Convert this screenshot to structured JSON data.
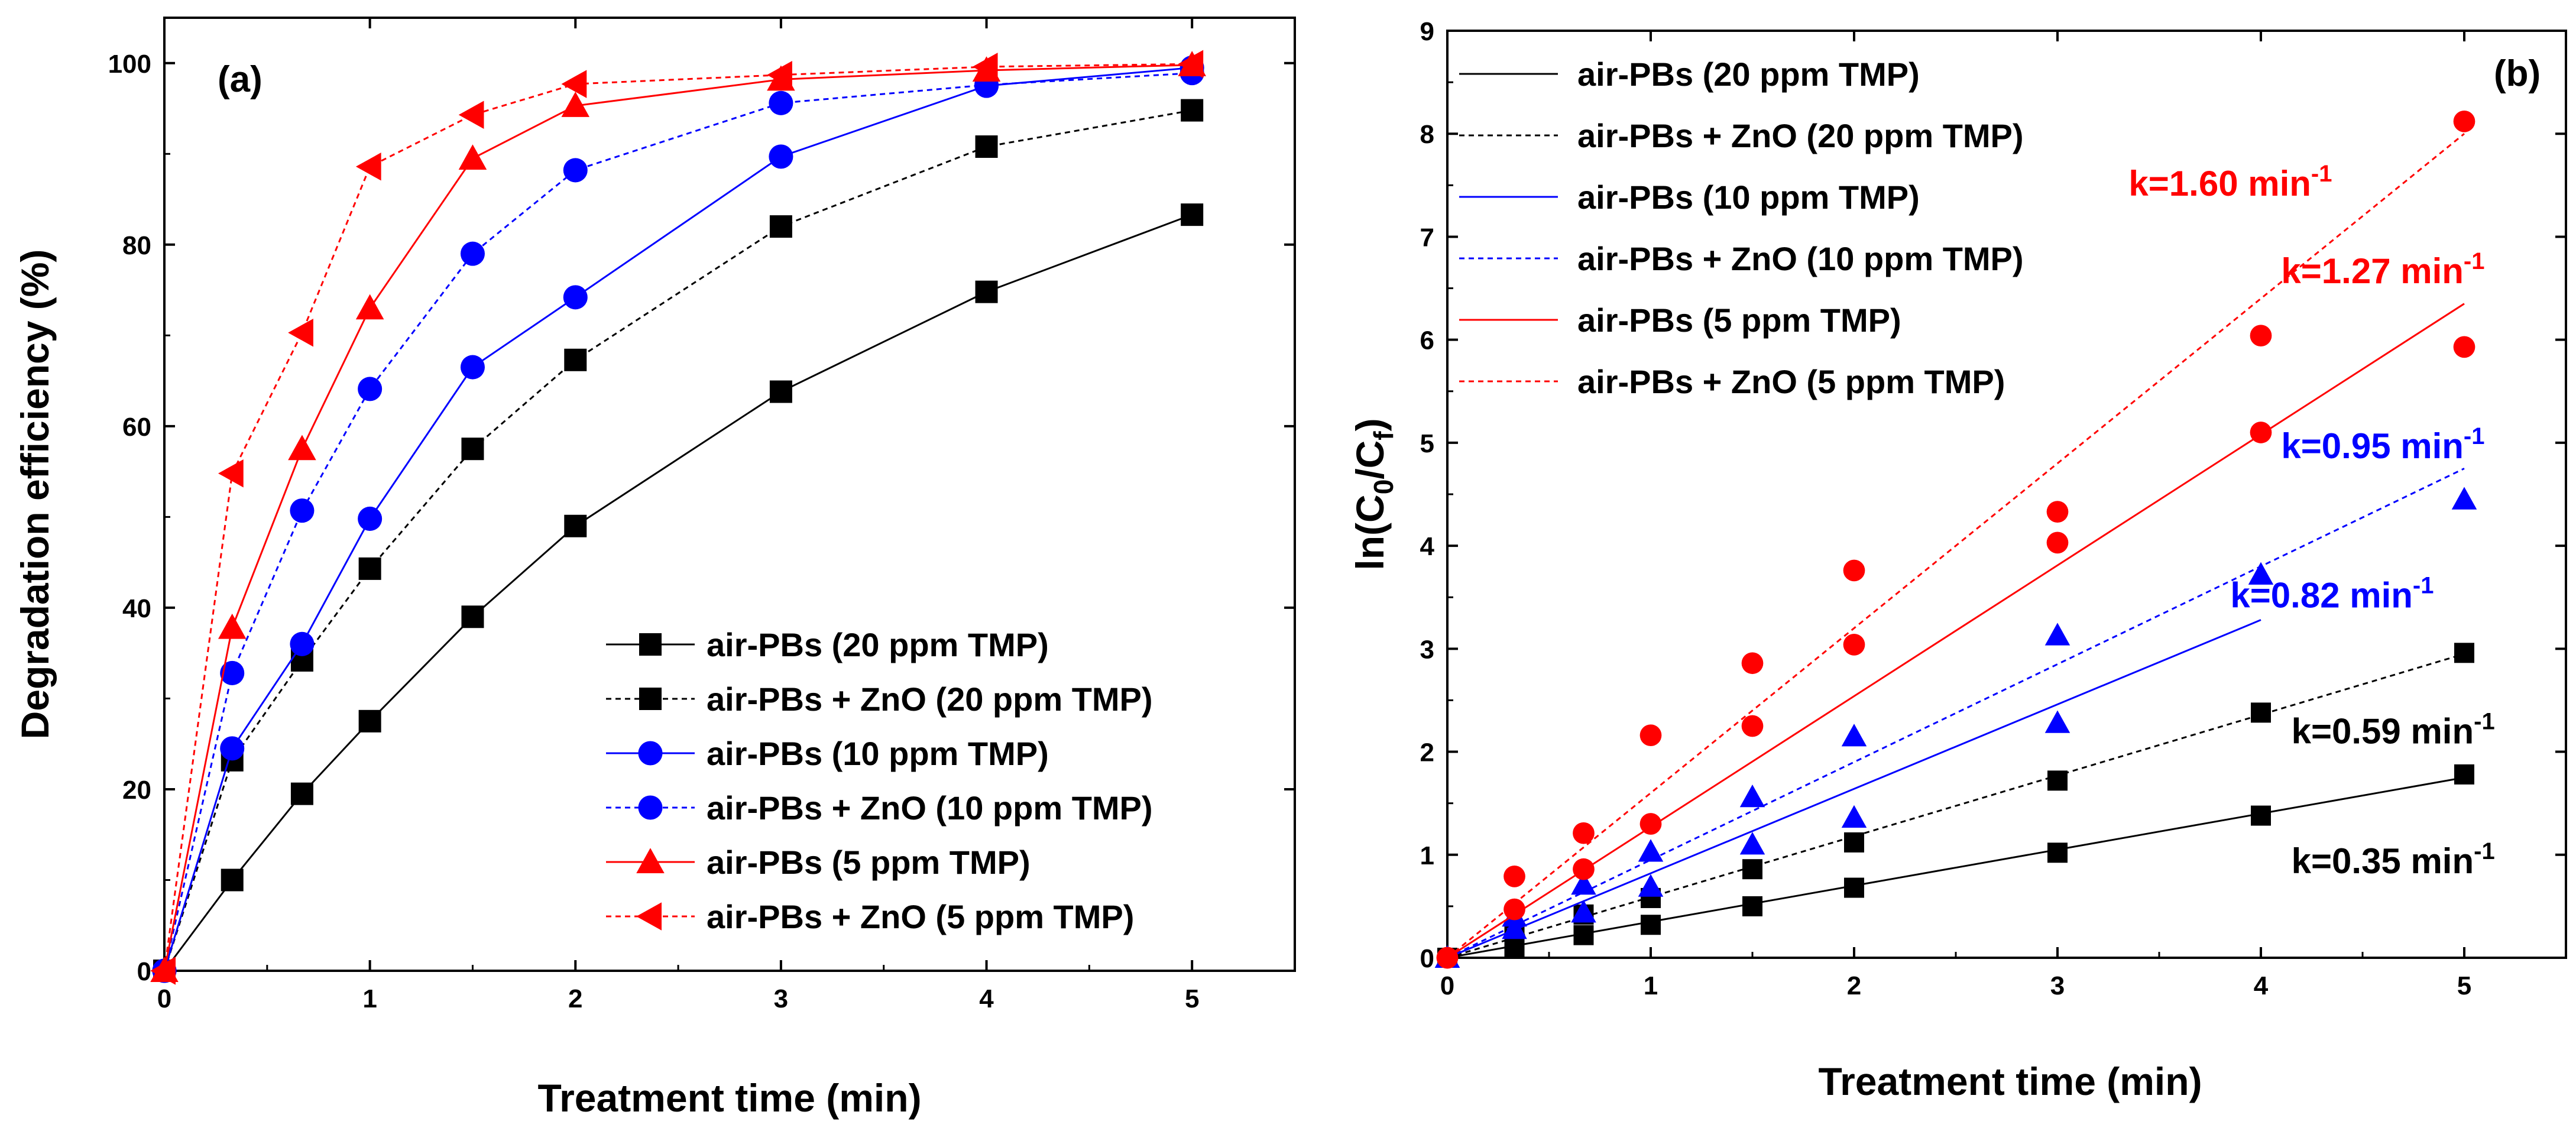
{
  "chart_data": [
    {
      "panel": "(a)",
      "type": "line",
      "xlabel": "Treatment time (min)",
      "ylabel": "Degradation efficiency (%)",
      "xlim": [
        0,
        5.5
      ],
      "ylim": [
        0,
        105
      ],
      "xticks": [
        "0",
        "1",
        "2",
        "3",
        "4",
        "5"
      ],
      "yticks": [
        "0",
        "20",
        "40",
        "60",
        "80",
        "100"
      ],
      "legend_position": "bottom-right",
      "series": [
        {
          "name": "air-PBs (20 ppm TMP)",
          "color": "#000000",
          "marker": "square",
          "dashed": false,
          "x": [
            0,
            0.33,
            0.67,
            1,
            1.5,
            2,
            3,
            4,
            5
          ],
          "y": [
            0,
            10,
            19.5,
            27.5,
            39,
            49,
            63.8,
            74.8,
            83.3
          ]
        },
        {
          "name": "air-PBs + ZnO (20 ppm TMP)",
          "color": "#000000",
          "marker": "square",
          "dashed": true,
          "x": [
            0,
            0.33,
            0.67,
            1,
            1.5,
            2,
            3,
            4,
            5
          ],
          "y": [
            0,
            23.2,
            34.2,
            44.3,
            57.5,
            67.3,
            82,
            90.8,
            94.8
          ]
        },
        {
          "name": "air-PBs (10 ppm TMP)",
          "color": "#0000ff",
          "marker": "circle",
          "dashed": false,
          "x": [
            0,
            0.33,
            0.67,
            1,
            1.5,
            2,
            3,
            4,
            5
          ],
          "y": [
            0,
            24.5,
            36,
            49.8,
            66.5,
            74.2,
            89.7,
            97.5,
            99.5
          ]
        },
        {
          "name": "air-PBs + ZnO (10 ppm TMP)",
          "color": "#0000ff",
          "marker": "circle",
          "dashed": true,
          "x": [
            0,
            0.33,
            0.67,
            1,
            1.5,
            2,
            3,
            4,
            5
          ],
          "y": [
            0,
            32.8,
            50.7,
            64.1,
            79,
            88.2,
            95.6,
            97.6,
            98.9
          ]
        },
        {
          "name": "air-PBs (5 ppm TMP)",
          "color": "#ff0000",
          "marker": "triangle",
          "dashed": false,
          "x": [
            0,
            0.33,
            0.67,
            1,
            1.5,
            2,
            3,
            4,
            5
          ],
          "y": [
            0,
            37.8,
            57.5,
            73,
            89.5,
            95.3,
            98.2,
            99.2,
            99.8
          ]
        },
        {
          "name": "air-PBs + ZnO (5 ppm TMP)",
          "color": "#ff0000",
          "marker": "triangle-left",
          "dashed": true,
          "x": [
            0,
            0.33,
            0.67,
            1,
            1.5,
            2,
            3,
            4,
            5
          ],
          "y": [
            0,
            54.8,
            70.3,
            88.6,
            94.3,
            97.7,
            98.7,
            99.6,
            99.9
          ]
        }
      ]
    },
    {
      "panel": "(b)",
      "type": "scatter",
      "xlabel": "Treatment time (min)",
      "ylabel_main": "ln(C",
      "ylabel_sub1": "0",
      "ylabel_mid": "/C",
      "ylabel_sub2": "f",
      "ylabel_end": ")",
      "xlim": [
        0,
        5.5
      ],
      "ylim": [
        0,
        9
      ],
      "xticks": [
        "0",
        "1",
        "2",
        "3",
        "4",
        "5"
      ],
      "yticks": [
        "0",
        "1",
        "2",
        "3",
        "4",
        "5",
        "6",
        "7",
        "8",
        "9"
      ],
      "legend_position": "top-left",
      "series": [
        {
          "name": "air-PBs (20 ppm TMP)",
          "color": "#000000",
          "marker": "square",
          "dashed": false,
          "x": [
            0,
            0.33,
            0.67,
            1,
            1.5,
            2,
            3,
            4,
            5
          ],
          "y": [
            0,
            0.1,
            0.22,
            0.32,
            0.5,
            0.68,
            1.02,
            1.38,
            1.78
          ],
          "fit_k": 0.35,
          "fit_xmax": 5
        },
        {
          "name": "air-PBs + ZnO (20 ppm TMP)",
          "color": "#000000",
          "marker": "square",
          "dashed": true,
          "x": [
            0,
            0.33,
            0.67,
            1,
            1.5,
            2,
            3,
            4,
            5
          ],
          "y": [
            0,
            0.26,
            0.42,
            0.58,
            0.86,
            1.12,
            1.72,
            2.38,
            2.96
          ],
          "fit_k": 0.59,
          "fit_xmax": 5
        },
        {
          "name": "air-PBs (10 ppm TMP)",
          "color": "#0000ff",
          "marker": "triangle",
          "dashed": false,
          "x": [
            0,
            0.33,
            0.67,
            1,
            1.5,
            2,
            3,
            4
          ],
          "y": [
            0,
            0.28,
            0.44,
            0.69,
            1.1,
            1.36,
            2.28,
            3.72
          ],
          "fit_k": 0.82,
          "fit_xmax": 4
        },
        {
          "name": "air-PBs + ZnO (10 ppm TMP)",
          "color": "#0000ff",
          "marker": "triangle",
          "dashed": true,
          "x": [
            0,
            0.33,
            0.67,
            1,
            1.5,
            2,
            3,
            5
          ],
          "y": [
            0,
            0.4,
            0.71,
            1.03,
            1.56,
            2.15,
            3.13,
            4.45
          ],
          "fit_k": 0.95,
          "fit_xmax": 5
        },
        {
          "name": "air-PBs (5 ppm TMP)",
          "color": "#ff0000",
          "marker": "circle",
          "dashed": false,
          "x": [
            0,
            0.33,
            0.67,
            1,
            1.5,
            2,
            3,
            4,
            5
          ],
          "y": [
            0,
            0.47,
            0.86,
            1.3,
            2.25,
            3.04,
            4.03,
            5.1,
            5.93
          ],
          "fit_k": 1.27,
          "fit_xmax": 5
        },
        {
          "name": "air-PBs + ZnO (5 ppm TMP)",
          "color": "#ff0000",
          "marker": "circle",
          "dashed": true,
          "x": [
            0,
            0.33,
            0.67,
            1,
            1.5,
            2,
            3,
            4,
            5
          ],
          "y": [
            0,
            0.79,
            1.21,
            2.16,
            2.86,
            3.76,
            4.33,
            6.04,
            8.12
          ],
          "fit_k": 1.6,
          "fit_xmax": 5
        }
      ],
      "annotations": [
        {
          "text": "k=1.60 min",
          "sup": "-1",
          "color": "#ff0000",
          "x": 3.35,
          "y": 7.4
        },
        {
          "text": "k=1.27 min",
          "sup": "-1",
          "color": "#ff0000",
          "x": 4.1,
          "y": 6.55
        },
        {
          "text": "k=0.95 min",
          "sup": "-1",
          "color": "#0000ff",
          "x": 4.1,
          "y": 4.85
        },
        {
          "text": "k=0.82 min",
          "sup": "-1",
          "color": "#0000ff",
          "x": 3.85,
          "y": 3.4
        },
        {
          "text": "k=0.59 min",
          "sup": "-1",
          "color": "#000000",
          "x": 4.15,
          "y": 2.08
        },
        {
          "text": "k=0.35 min",
          "sup": "-1",
          "color": "#000000",
          "x": 4.15,
          "y": 0.82
        }
      ]
    }
  ]
}
